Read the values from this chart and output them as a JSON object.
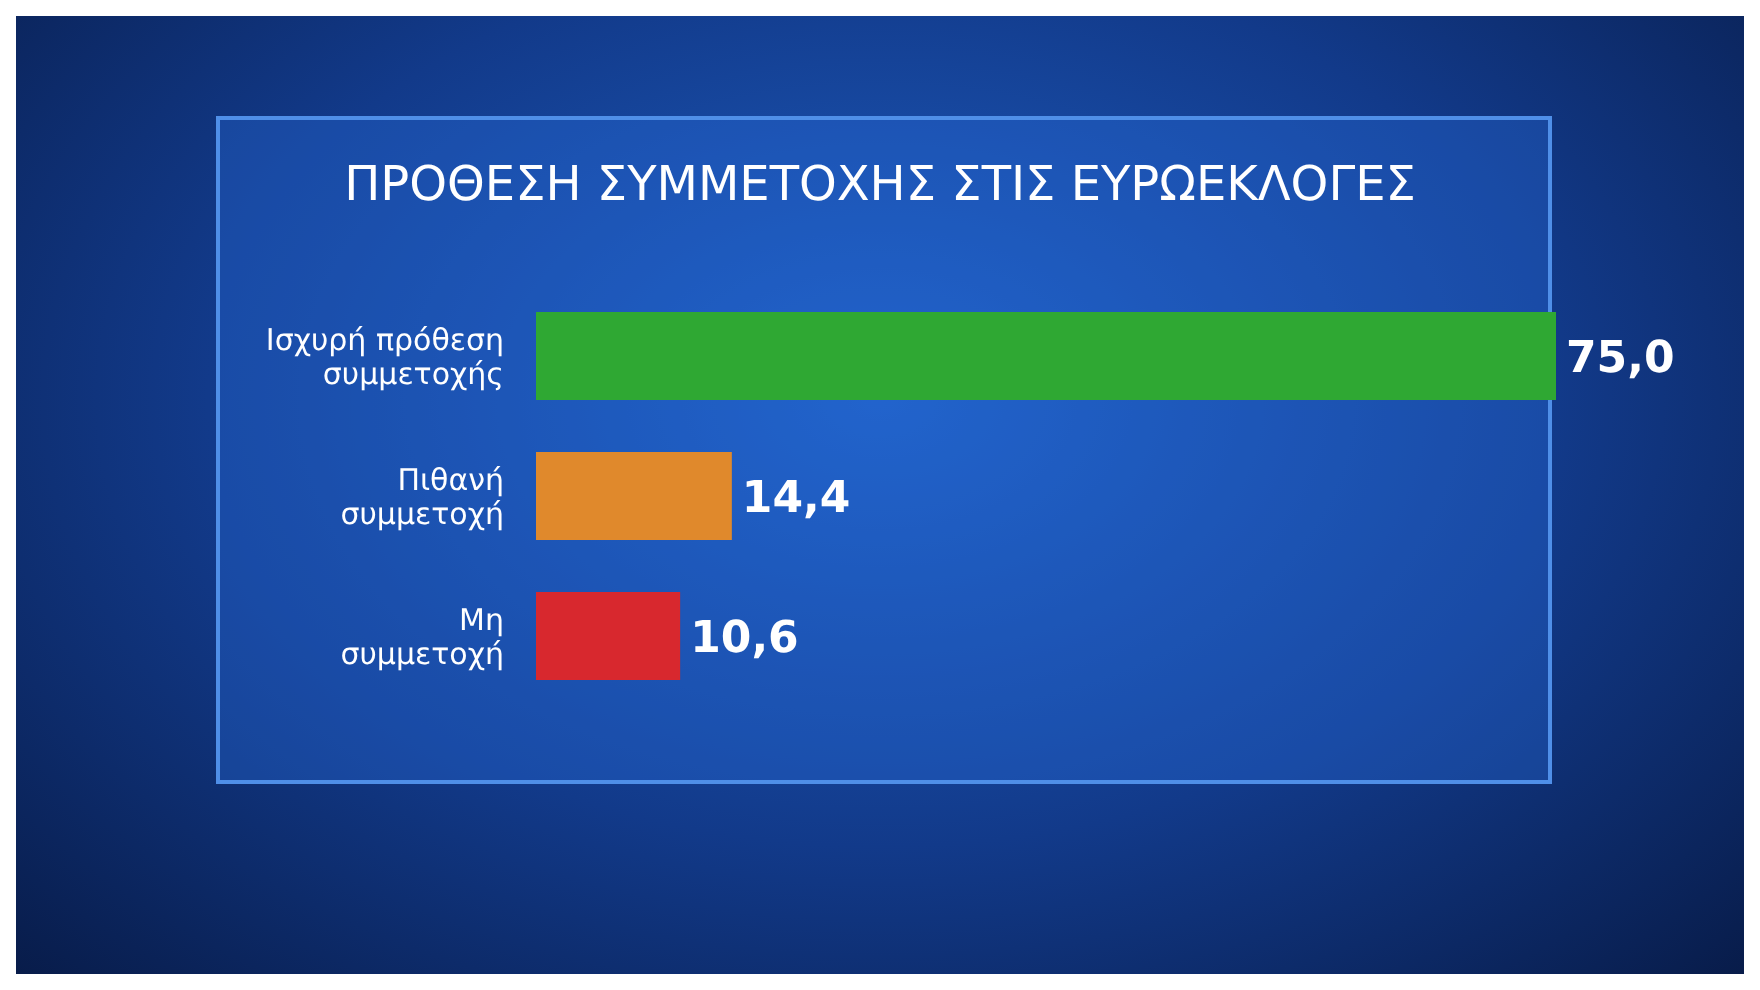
{
  "chart_data": {
    "type": "bar",
    "orientation": "horizontal",
    "title": "ΠΡΟΘΕΣΗ ΣΥΜΜΕΤΟΧΗΣ ΣΤΙΣ ΕΥΡΩΕΚΛΟΓΕΣ",
    "categories": [
      "Ισχυρή πρόθεση συμμετοχής",
      "Πιθανή συμμετοχή",
      "Μη συμμετοχή"
    ],
    "values": [
      75.0,
      14.4,
      10.6
    ],
    "colors": [
      "#2fa833",
      "#e0892c",
      "#d8282e"
    ],
    "value_labels": [
      "75,0",
      "14,4",
      "10,6"
    ],
    "tick_labels": "y"
  }
}
